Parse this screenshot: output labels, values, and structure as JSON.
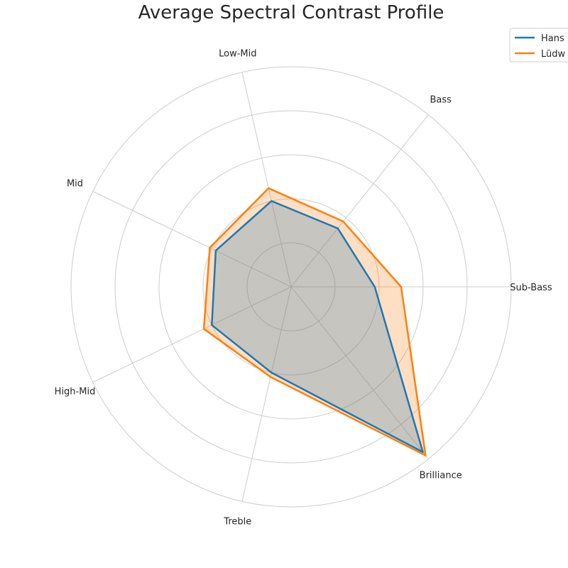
{
  "chart_data": {
    "type": "radar",
    "title": "Average Spectral Contrast Profile",
    "categories": [
      "Sub-Bass",
      "Bass",
      "Low-Mid",
      "Mid",
      "High-Mid",
      "Treble",
      "Brilliance"
    ],
    "rmax": 50,
    "rings": [
      10,
      20,
      30,
      40,
      50
    ],
    "series": [
      {
        "name": "Hans",
        "color": "#1f77b4",
        "fill": "#1f77b4",
        "fill_opacity": 0.25,
        "values": [
          19,
          17,
          20,
          19,
          20,
          20,
          48
        ]
      },
      {
        "name": "Lüdw",
        "color": "#ff7f0e",
        "fill": "#ff7f0e",
        "fill_opacity": 0.25,
        "values": [
          25,
          19,
          23,
          20.5,
          22,
          21,
          49
        ]
      }
    ],
    "legend": "top-right",
    "grid": true
  }
}
